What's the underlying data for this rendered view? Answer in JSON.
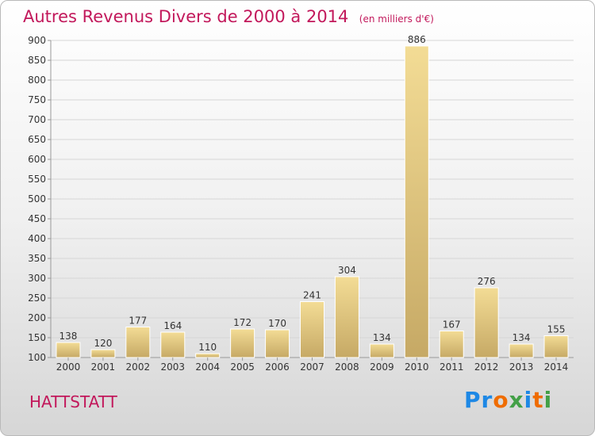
{
  "title": {
    "main": "Autres Revenus Divers de 2000 à 2014",
    "unit": "(en milliers d'€)"
  },
  "commune": "HATTSTATT",
  "logo": {
    "text": "Proxiti"
  },
  "colors": {
    "title": "#c2185b",
    "bar_light": "#f3dc95",
    "bar_dark": "#c6a965",
    "grid": "#d6d6d6"
  },
  "chart_data": {
    "type": "bar",
    "categories": [
      "2000",
      "2001",
      "2002",
      "2003",
      "2004",
      "2005",
      "2006",
      "2007",
      "2008",
      "2009",
      "2010",
      "2011",
      "2012",
      "2013",
      "2014"
    ],
    "values": [
      138,
      120,
      177,
      164,
      110,
      172,
      170,
      241,
      304,
      134,
      886,
      167,
      276,
      134,
      155
    ],
    "ylim": [
      100,
      900
    ],
    "yticks": [
      100,
      150,
      200,
      250,
      300,
      350,
      400,
      450,
      500,
      550,
      600,
      650,
      700,
      750,
      800,
      850,
      900
    ],
    "grid": true
  }
}
